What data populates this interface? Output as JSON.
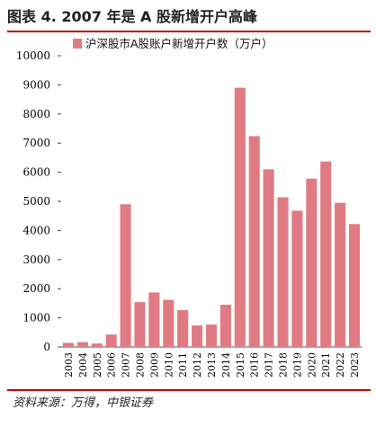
{
  "figure": {
    "title": "图表 4. 2007 年是 A 股新增开户高峰",
    "source": "资料来源：万得，中银证券"
  },
  "colors": {
    "bar": "#e07b83",
    "accent_rule": "#c00000"
  },
  "chart_data": {
    "type": "bar",
    "categories": [
      "2003",
      "2004",
      "2005",
      "2006",
      "2007",
      "2008",
      "2009",
      "2010",
      "2011",
      "2012",
      "2013",
      "2014",
      "2015",
      "2016",
      "2017",
      "2018",
      "2019",
      "2020",
      "2021",
      "2022",
      "2023"
    ],
    "series": [
      {
        "name": "沪深股市A股账户新增开户数（万户）",
        "values": [
          140,
          170,
          120,
          430,
          4900,
          1540,
          1870,
          1620,
          1270,
          740,
          770,
          1450,
          8900,
          7240,
          6100,
          5140,
          4680,
          5780,
          6370,
          4950,
          4220
        ]
      }
    ],
    "ylim": [
      0,
      10000
    ],
    "yticks": [
      0,
      1000,
      2000,
      3000,
      4000,
      5000,
      6000,
      7000,
      8000,
      9000,
      10000
    ],
    "grid": false,
    "legend_position": "top-left"
  }
}
